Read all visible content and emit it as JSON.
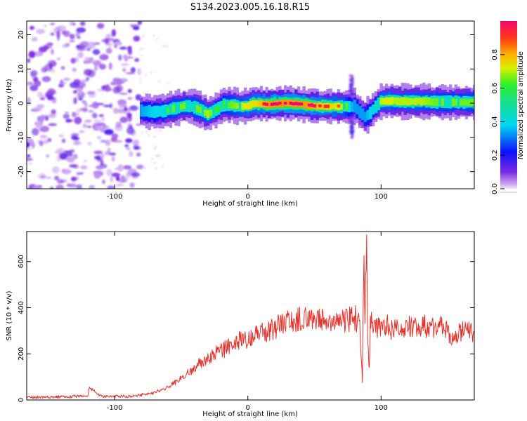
{
  "title": "S134.2023.005.16.18.R15",
  "chart_data": [
    {
      "type": "heatmap",
      "xlabel": "Height of straight line (km)",
      "ylabel": "Frequency (Hz)",
      "xlim": [
        -166,
        170
      ],
      "ylim": [
        -25,
        24
      ],
      "xticks": [
        -100,
        0,
        100
      ],
      "yticks": [
        -20,
        -10,
        0,
        10,
        20
      ],
      "colorbar": {
        "label": "Normalized spectral amplitude",
        "range": [
          0,
          1
        ],
        "ticks": [
          "0.0",
          "0.2",
          "0.4",
          "0.6",
          "0.8"
        ]
      },
      "noise_region_x": [
        -166,
        -81
      ],
      "ridge": {
        "x": [
          -81,
          -70,
          -62,
          -55,
          -48,
          -42,
          -36,
          -30,
          -24,
          -18,
          -12,
          -5,
          0,
          5,
          15,
          25,
          35,
          45,
          55,
          65,
          72,
          76,
          80,
          84,
          88,
          92,
          96,
          100,
          105,
          110,
          120,
          130,
          140,
          150,
          160,
          170
        ],
        "freq": [
          -2.2,
          -2.6,
          -2.3,
          -1.5,
          -0.8,
          -1.0,
          -1.8,
          -3.2,
          -2.0,
          -0.5,
          -0.6,
          -1.0,
          -0.8,
          0.0,
          -0.4,
          0.0,
          -0.1,
          -0.6,
          -0.9,
          -0.9,
          -1.0,
          -1.1,
          -0.8,
          -2.5,
          -4.0,
          -2.8,
          -1.0,
          0.5,
          0.7,
          0.6,
          0.5,
          0.5,
          0.4,
          0.3,
          0.3,
          0.2
        ],
        "amplitude": [
          0.6,
          0.7,
          0.75,
          0.8,
          0.8,
          0.8,
          0.8,
          0.85,
          0.75,
          0.75,
          0.8,
          0.85,
          0.9,
          0.9,
          1.0,
          1.0,
          1.0,
          1.0,
          0.95,
          0.9,
          0.85,
          0.7,
          0.6,
          0.6,
          0.6,
          0.7,
          0.75,
          0.85,
          0.9,
          0.85,
          0.85,
          0.85,
          0.8,
          0.8,
          0.8,
          0.8
        ]
      },
      "spike": {
        "x": 78,
        "freq_range": [
          -10,
          8
        ]
      }
    },
    {
      "type": "line",
      "xlabel": "Height of straight line (km)",
      "ylabel": "SNR (10 * v/v)",
      "xlim": [
        -166,
        170
      ],
      "ylim": [
        0,
        730
      ],
      "xticks": [
        -100,
        0,
        100
      ],
      "yticks": [
        0,
        200,
        400,
        600
      ],
      "series": [
        {
          "color": "#e8312a",
          "x": [
            -166,
            -150,
            -130,
            -120,
            -119,
            -110,
            -100,
            -90,
            -80,
            -70,
            -60,
            -55,
            -50,
            -45,
            -40,
            -35,
            -30,
            -25,
            -20,
            -15,
            -10,
            -5,
            0,
            5,
            10,
            15,
            20,
            25,
            30,
            35,
            40,
            45,
            50,
            55,
            60,
            65,
            70,
            75,
            80,
            84,
            86,
            87,
            88,
            89,
            90,
            91,
            92,
            94,
            96,
            100,
            105,
            110,
            115,
            120,
            125,
            130,
            135,
            140,
            145,
            150,
            152,
            155,
            158,
            160,
            165,
            170
          ],
          "y": [
            12,
            12,
            15,
            18,
            55,
            15,
            15,
            15,
            22,
            32,
            55,
            75,
            95,
            115,
            135,
            160,
            180,
            200,
            210,
            225,
            245,
            260,
            270,
            285,
            295,
            305,
            315,
            330,
            340,
            345,
            350,
            350,
            345,
            345,
            340,
            340,
            340,
            345,
            350,
            340,
            80,
            640,
            330,
            730,
            280,
            120,
            350,
            340,
            310,
            320,
            320,
            315,
            315,
            320,
            320,
            325,
            320,
            320,
            318,
            310,
            270,
            260,
            290,
            300,
            305,
            300
          ],
          "noise": 18
        }
      ]
    }
  ]
}
